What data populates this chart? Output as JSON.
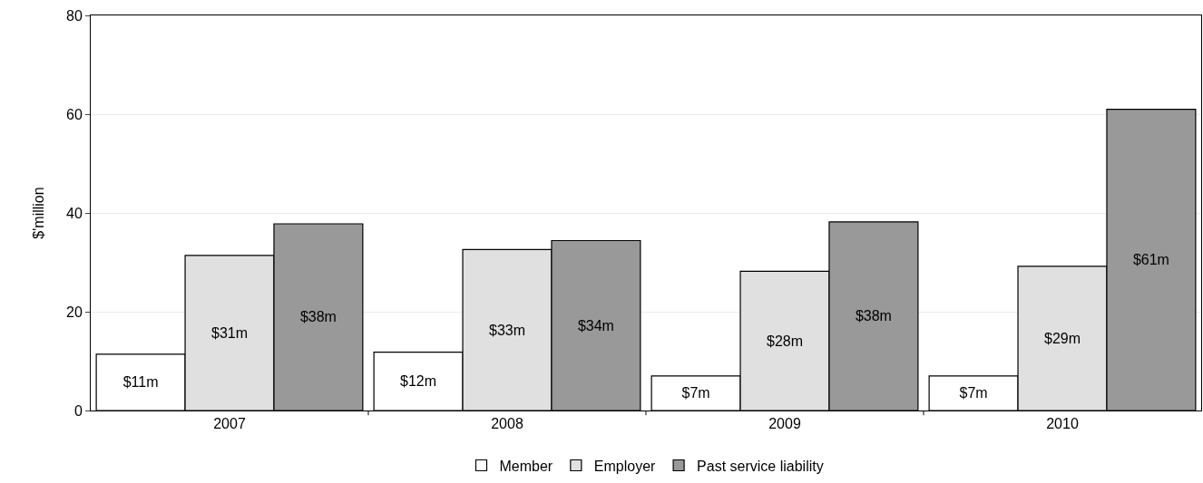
{
  "chart_data": {
    "type": "bar",
    "ylabel": "$'million",
    "categories": [
      "2007",
      "2008",
      "2009",
      "2010"
    ],
    "series": [
      {
        "name": "Member",
        "color": "#ffffff",
        "values": [
          11.4,
          11.8,
          7,
          7
        ],
        "value_labels": [
          "$11m",
          "$12m",
          "$7m",
          "$7m"
        ]
      },
      {
        "name": "Employer",
        "color": "#e0e0e0",
        "values": [
          31.4,
          32.6,
          28.2,
          29.2
        ],
        "value_labels": [
          "$31m",
          "$33m",
          "$28m",
          "$29m"
        ]
      },
      {
        "name": "Past service liability",
        "color": "#999999",
        "values": [
          37.8,
          34.4,
          38.2,
          61.0
        ],
        "value_labels": [
          "$38m",
          "$34m",
          "$38m",
          "$61m"
        ]
      }
    ],
    "ylim": [
      0,
      80
    ],
    "yticks": [
      0,
      20,
      40,
      60,
      80
    ],
    "grid": "y",
    "legend": "bottom"
  }
}
